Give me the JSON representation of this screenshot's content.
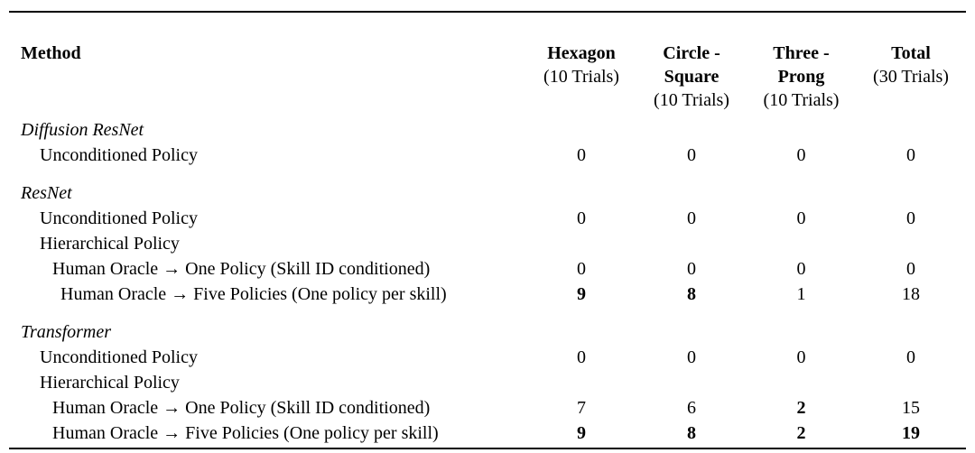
{
  "page": {
    "background_color": "#ffffff",
    "text_color": "#000000",
    "rule_color": "#000000"
  },
  "table": {
    "method_header": "Method",
    "columns": [
      {
        "name_line1": "",
        "name_line2": "Hexagon",
        "trials": "(10 Trials)"
      },
      {
        "name_line1": "Circle -",
        "name_line2": "Square",
        "trials": "(10 Trials)"
      },
      {
        "name_line1": "Three -",
        "name_line2": "Prong",
        "trials": "(10 Trials)"
      },
      {
        "name_line1": "",
        "name_line2": "Total",
        "trials": "(30 Trials)"
      }
    ],
    "rows": [
      {
        "label": "Diffusion ResNet",
        "values": [
          "",
          "",
          "",
          ""
        ],
        "bold": [
          false,
          false,
          false,
          false
        ]
      },
      {
        "label": "Unconditioned Policy",
        "values": [
          "0",
          "0",
          "0",
          "0"
        ],
        "bold": [
          false,
          false,
          false,
          false
        ]
      },
      {
        "label": "ResNet",
        "values": [
          "",
          "",
          "",
          ""
        ],
        "bold": [
          false,
          false,
          false,
          false
        ]
      },
      {
        "label": "Unconditioned Policy",
        "values": [
          "0",
          "0",
          "0",
          "0"
        ],
        "bold": [
          false,
          false,
          false,
          false
        ]
      },
      {
        "label": "Hierarchical Policy",
        "values": [
          "",
          "",
          "",
          ""
        ],
        "bold": [
          false,
          false,
          false,
          false
        ]
      },
      {
        "label": "Human Oracle → One Policy (Skill ID conditioned)",
        "values": [
          "0",
          "0",
          "0",
          "0"
        ],
        "bold": [
          false,
          false,
          false,
          false
        ]
      },
      {
        "label": "Human Oracle → Five Policies (One policy per skill)",
        "values": [
          "9",
          "8",
          "1",
          "18"
        ],
        "bold": [
          true,
          true,
          false,
          false
        ]
      },
      {
        "label": "Transformer",
        "values": [
          "",
          "",
          "",
          ""
        ],
        "bold": [
          false,
          false,
          false,
          false
        ]
      },
      {
        "label": "Unconditioned Policy",
        "values": [
          "0",
          "0",
          "0",
          "0"
        ],
        "bold": [
          false,
          false,
          false,
          false
        ]
      },
      {
        "label": "Hierarchical Policy",
        "values": [
          "",
          "",
          "",
          ""
        ],
        "bold": [
          false,
          false,
          false,
          false
        ]
      },
      {
        "label": "Human Oracle → One Policy (Skill ID conditioned)",
        "values": [
          "7",
          "6",
          "2",
          "15"
        ],
        "bold": [
          false,
          false,
          true,
          false
        ]
      },
      {
        "label": "Human Oracle → Five Policies (One policy per skill)",
        "values": [
          "9",
          "8",
          "2",
          "19"
        ],
        "bold": [
          true,
          true,
          true,
          true
        ]
      }
    ]
  }
}
